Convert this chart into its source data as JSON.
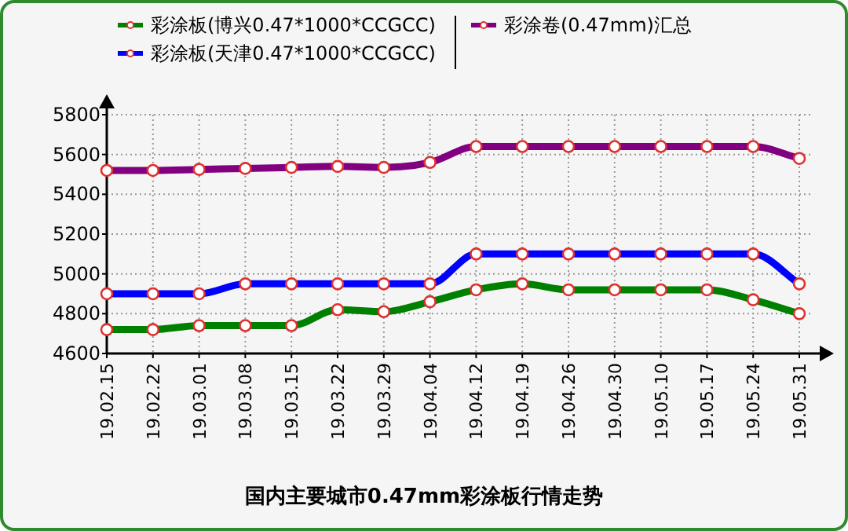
{
  "chart_data": {
    "type": "line",
    "title": "国内主要城市0.47mm彩涂板行情走势",
    "categories": [
      "19.02.15",
      "19.02.22",
      "19.03.01",
      "19.03.08",
      "19.03.15",
      "19.03.22",
      "19.03.29",
      "19.04.04",
      "19.04.12",
      "19.04.19",
      "19.04.26",
      "19.04.30",
      "19.05.10",
      "19.05.17",
      "19.05.24",
      "19.05.31"
    ],
    "series": [
      {
        "name": "彩涂板(博兴0.47*1000*CCGCC)",
        "color": "#008000",
        "values": [
          4720,
          4720,
          4740,
          4740,
          4740,
          4820,
          4810,
          4860,
          4920,
          4950,
          4920,
          4920,
          4920,
          4920,
          4870,
          4800
        ]
      },
      {
        "name": "彩涂板(天津0.47*1000*CCGCC)",
        "color": "#0000ff",
        "values": [
          4900,
          4900,
          4900,
          4950,
          4950,
          4950,
          4950,
          4950,
          5100,
          5100,
          5100,
          5100,
          5100,
          5100,
          5100,
          4950
        ]
      },
      {
        "name": "彩涂卷(0.47mm)汇总",
        "color": "#800080",
        "values": [
          5520,
          5520,
          5525,
          5530,
          5535,
          5540,
          5535,
          5560,
          5640,
          5640,
          5640,
          5640,
          5640,
          5640,
          5640,
          5580
        ]
      }
    ],
    "ylim": [
      4600,
      5800
    ],
    "yticks": [
      4600,
      4800,
      5000,
      5200,
      5400,
      5600,
      5800
    ],
    "grid": true,
    "legend": "top",
    "marker": "circle",
    "line_style": "solid"
  }
}
